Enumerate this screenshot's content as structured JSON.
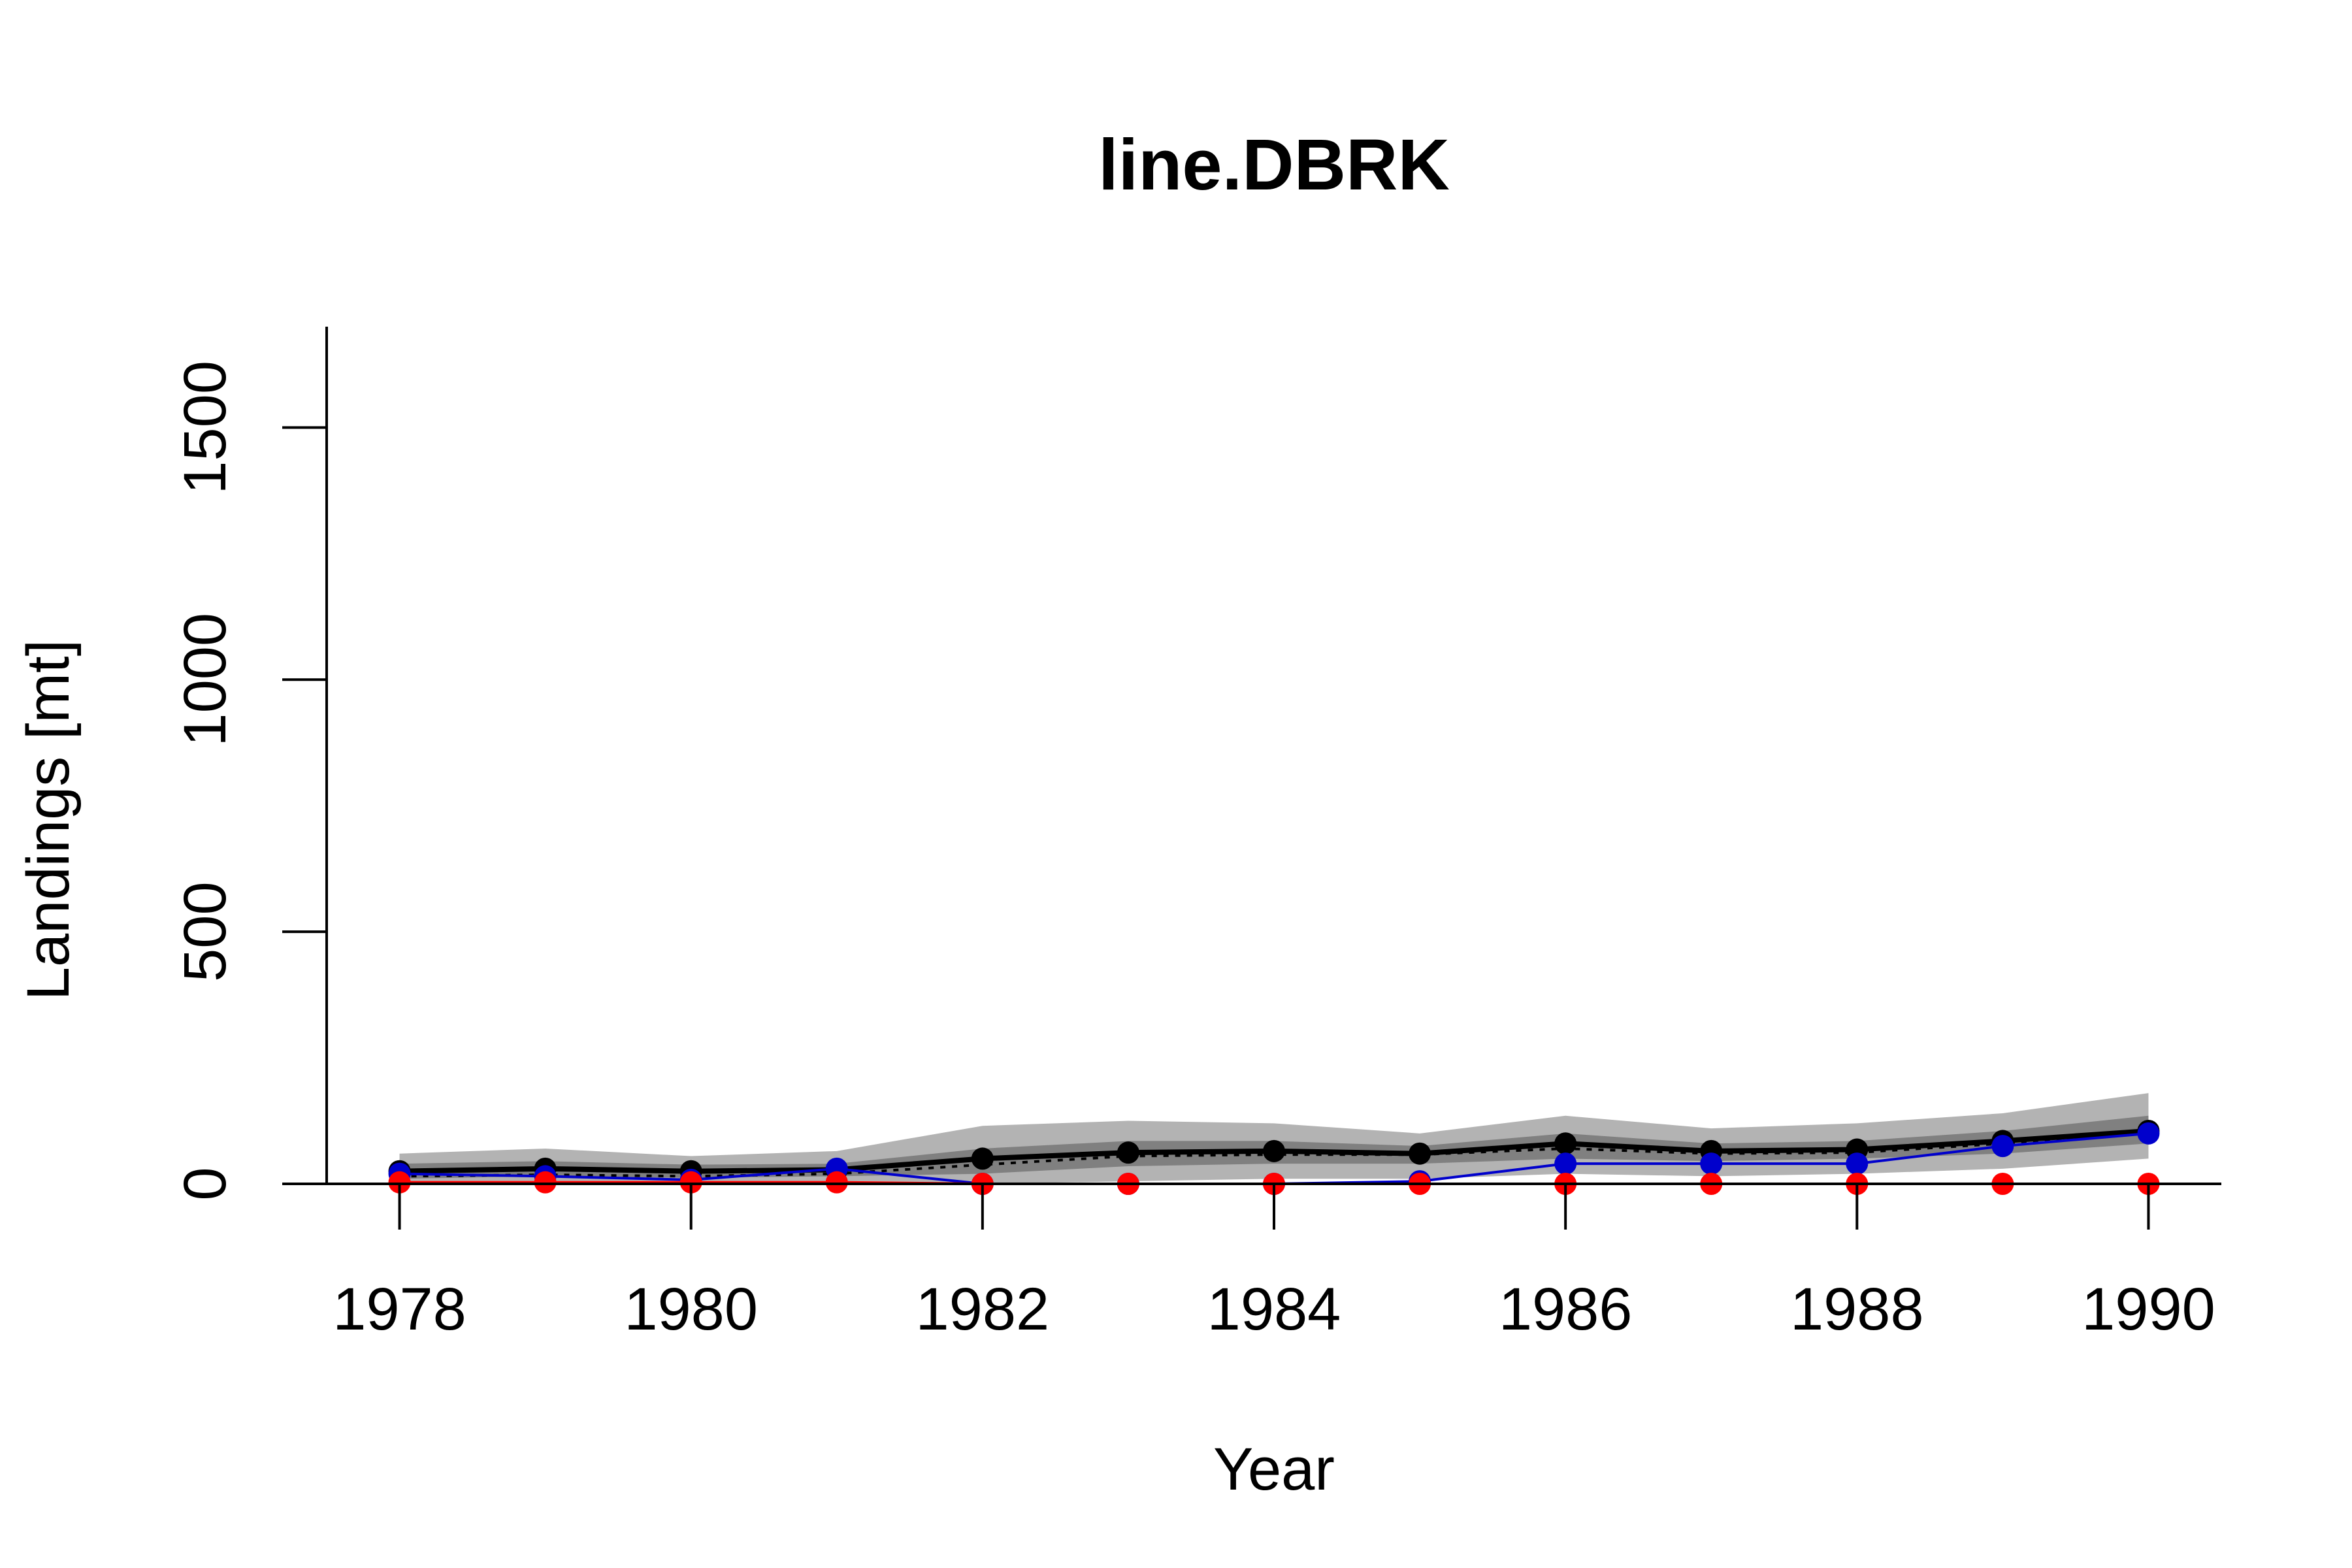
{
  "chart_data": {
    "type": "line",
    "title": "line.DBRK",
    "xlabel": "Year",
    "ylabel": "Landings [mt]",
    "x": [
      1978,
      1979,
      1980,
      1981,
      1982,
      1983,
      1984,
      1985,
      1986,
      1987,
      1988,
      1989,
      1990
    ],
    "xlim": [
      1977.5,
      1990.5
    ],
    "ylim": [
      0,
      1700
    ],
    "x_ticks": [
      1978,
      1980,
      1982,
      1984,
      1986,
      1988,
      1990
    ],
    "y_ticks": [
      0,
      500,
      1000,
      1500
    ],
    "grid": false,
    "legend": "none",
    "bands": [
      {
        "color": "#b3b3b3",
        "lower": [
          0,
          0,
          0,
          0,
          0,
          5,
          10,
          10,
          20,
          15,
          20,
          30,
          50
        ],
        "upper": [
          60,
          70,
          55,
          65,
          115,
          125,
          120,
          100,
          135,
          110,
          120,
          140,
          180
        ]
      },
      {
        "color": "#808080",
        "lower": [
          10,
          15,
          12,
          15,
          20,
          35,
          40,
          40,
          50,
          45,
          50,
          60,
          80
        ],
        "upper": [
          40,
          45,
          38,
          40,
          70,
          85,
          85,
          75,
          100,
          80,
          85,
          105,
          135
        ]
      }
    ],
    "series": [
      {
        "color": "#000000",
        "style": "solid",
        "width": 8,
        "markers": true,
        "values": [
          25,
          30,
          25,
          28,
          50,
          62,
          65,
          60,
          80,
          65,
          68,
          85,
          105
        ]
      },
      {
        "color": "#000000",
        "style": "dotted",
        "width": 4,
        "markers": false,
        "values": [
          15,
          18,
          15,
          20,
          38,
          55,
          58,
          58,
          70,
          60,
          62,
          80,
          100
        ]
      },
      {
        "color": "#0000cc",
        "style": "solid",
        "width": 4,
        "markers": true,
        "values": [
          20,
          15,
          8,
          30,
          0,
          0,
          0,
          5,
          40,
          40,
          40,
          75,
          100
        ]
      },
      {
        "color": "#ff0000",
        "style": "solid",
        "width": 4,
        "markers": true,
        "values": [
          3,
          3,
          3,
          3,
          0,
          0,
          0,
          0,
          0,
          0,
          0,
          0,
          0
        ]
      }
    ]
  }
}
